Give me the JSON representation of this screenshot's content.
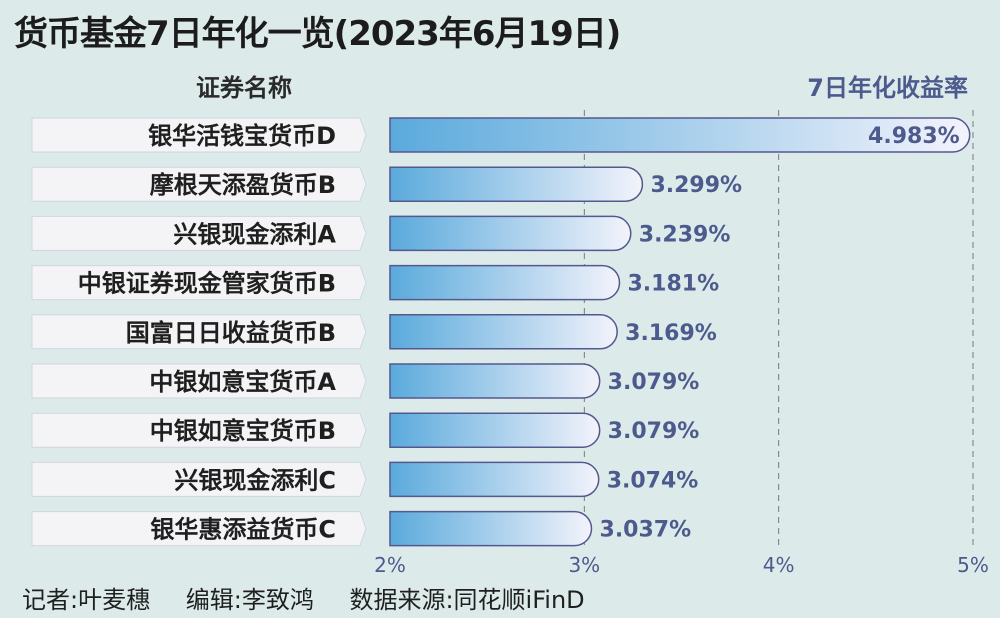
{
  "title": "货币基金7日年化一览(2023年6月19日)",
  "column_headers": {
    "name": "证券名称",
    "value": "7日年化收益率"
  },
  "footer": {
    "reporter": "记者:叶麦穗",
    "editor": "编辑:李致鸿",
    "source": "数据来源:同花顺iFinD"
  },
  "colors": {
    "bar_start": "#5aaadc",
    "bar_end": "#f3f3fb",
    "bar_outline": "#54588f",
    "value_text": "#4d5a8e",
    "label_box": "#f4f4f6",
    "gridline": "#7a7a7a"
  },
  "chart_data": {
    "type": "bar",
    "orientation": "horizontal",
    "categories": [
      "银华活钱宝货币D",
      "摩根天添盈货币B",
      "兴银现金添利A",
      "中银证券现金管家货币B",
      "国富日日收益货币B",
      "中银如意宝货币A",
      "中银如意宝货币B",
      "兴银现金添利C",
      "银华惠添益货币C"
    ],
    "values": [
      4.983,
      3.299,
      3.239,
      3.181,
      3.169,
      3.079,
      3.079,
      3.074,
      3.037
    ],
    "value_labels": [
      "4.983%",
      "3.299%",
      "3.239%",
      "3.181%",
      "3.169%",
      "3.079%",
      "3.079%",
      "3.074%",
      "3.037%"
    ],
    "xlim": [
      2,
      5
    ],
    "xticks": [
      2,
      3,
      4,
      5
    ],
    "xtick_labels": [
      "2%",
      "3%",
      "4%",
      "5%"
    ],
    "grid": "vertical dashed"
  }
}
